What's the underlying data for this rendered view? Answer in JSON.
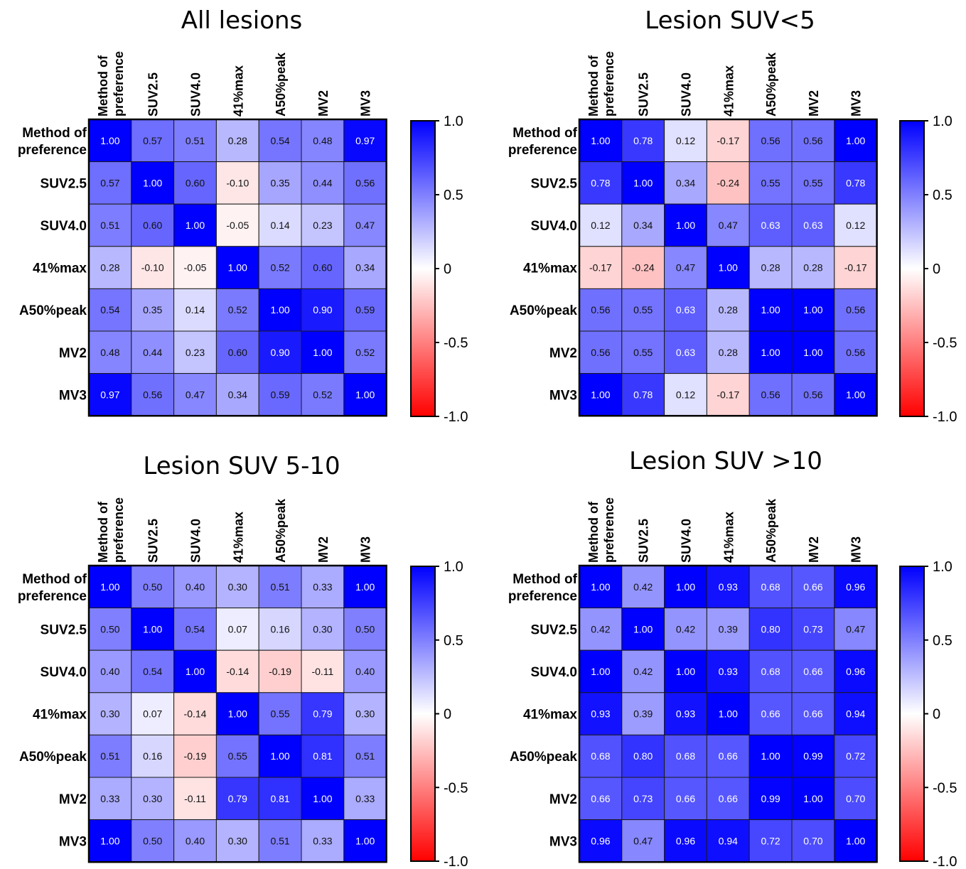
{
  "chart_data": [
    {
      "type": "heatmap",
      "title": "All lesions",
      "rows": [
        "Method of preference",
        "SUV2.5",
        "SUV4.0",
        "41%max",
        "A50%peak",
        "MV2",
        "MV3"
      ],
      "cols": [
        "Method of preference",
        "SUV2.5",
        "SUV4.0",
        "41%max",
        "A50%peak",
        "MV2",
        "MV3"
      ],
      "values": [
        [
          1.0,
          0.57,
          0.51,
          0.28,
          0.54,
          0.48,
          0.97
        ],
        [
          0.57,
          1.0,
          0.6,
          -0.1,
          0.35,
          0.44,
          0.56
        ],
        [
          0.51,
          0.6,
          1.0,
          -0.05,
          0.14,
          0.23,
          0.47
        ],
        [
          0.28,
          -0.1,
          -0.05,
          1.0,
          0.52,
          0.6,
          0.34
        ],
        [
          0.54,
          0.35,
          0.14,
          0.52,
          1.0,
          0.9,
          0.59
        ],
        [
          0.48,
          0.44,
          0.23,
          0.6,
          0.9,
          1.0,
          0.52
        ],
        [
          0.97,
          0.56,
          0.47,
          0.34,
          0.59,
          0.52,
          1.0
        ]
      ],
      "colorbar": {
        "range": [
          -1.0,
          1.0
        ],
        "ticks": [
          "1.0",
          "0.5",
          "0",
          "-0.5",
          "-1.0"
        ]
      }
    },
    {
      "type": "heatmap",
      "title": "Lesion SUV<5",
      "rows": [
        "Method of preference",
        "SUV2.5",
        "SUV4.0",
        "41%max",
        "A50%peak",
        "MV2",
        "MV3"
      ],
      "cols": [
        "Method of preference",
        "SUV2.5",
        "SUV4.0",
        "41%max",
        "A50%peak",
        "MV2",
        "MV3"
      ],
      "values": [
        [
          1.0,
          0.78,
          0.12,
          -0.17,
          0.56,
          0.56,
          1.0
        ],
        [
          0.78,
          1.0,
          0.34,
          -0.24,
          0.55,
          0.55,
          0.78
        ],
        [
          0.12,
          0.34,
          1.0,
          0.47,
          0.63,
          0.63,
          0.12
        ],
        [
          -0.17,
          -0.24,
          0.47,
          1.0,
          0.28,
          0.28,
          -0.17
        ],
        [
          0.56,
          0.55,
          0.63,
          0.28,
          1.0,
          1.0,
          0.56
        ],
        [
          0.56,
          0.55,
          0.63,
          0.28,
          1.0,
          1.0,
          0.56
        ],
        [
          1.0,
          0.78,
          0.12,
          -0.17,
          0.56,
          0.56,
          1.0
        ]
      ],
      "colorbar": {
        "range": [
          -1.0,
          1.0
        ],
        "ticks": [
          "1.0",
          "0.5",
          "0",
          "-0.5",
          "-1.0"
        ]
      }
    },
    {
      "type": "heatmap",
      "title": "Lesion SUV 5-10",
      "rows": [
        "Method of preference",
        "SUV2.5",
        "SUV4.0",
        "41%max",
        "A50%peak",
        "MV2",
        "MV3"
      ],
      "cols": [
        "Method of preference",
        "SUV2.5",
        "SUV4.0",
        "41%max",
        "A50%peak",
        "MV2",
        "MV3"
      ],
      "values": [
        [
          1.0,
          0.5,
          0.4,
          0.3,
          0.51,
          0.33,
          1.0
        ],
        [
          0.5,
          1.0,
          0.54,
          0.07,
          0.16,
          0.3,
          0.5
        ],
        [
          0.4,
          0.54,
          1.0,
          -0.14,
          -0.19,
          -0.11,
          0.4
        ],
        [
          0.3,
          0.07,
          -0.14,
          1.0,
          0.55,
          0.79,
          0.3
        ],
        [
          0.51,
          0.16,
          -0.19,
          0.55,
          1.0,
          0.81,
          0.51
        ],
        [
          0.33,
          0.3,
          -0.11,
          0.79,
          0.81,
          1.0,
          0.33
        ],
        [
          1.0,
          0.5,
          0.4,
          0.3,
          0.51,
          0.33,
          1.0
        ]
      ],
      "colorbar": {
        "range": [
          -1.0,
          1.0
        ],
        "ticks": [
          "1.0",
          "0.5",
          "0",
          "-0.5",
          "-1.0"
        ]
      }
    },
    {
      "type": "heatmap",
      "title": "Lesion SUV >10",
      "rows": [
        "Method of preference",
        "SUV2.5",
        "SUV4.0",
        "41%max",
        "A50%peak",
        "MV2",
        "MV3"
      ],
      "cols": [
        "Method of preference",
        "SUV2.5",
        "SUV4.0",
        "41%max",
        "A50%peak",
        "MV2",
        "MV3"
      ],
      "values": [
        [
          1.0,
          0.42,
          1.0,
          0.93,
          0.68,
          0.66,
          0.96
        ],
        [
          0.42,
          1.0,
          0.42,
          0.39,
          0.8,
          0.73,
          0.47
        ],
        [
          1.0,
          0.42,
          1.0,
          0.93,
          0.68,
          0.66,
          0.96
        ],
        [
          0.93,
          0.39,
          0.93,
          1.0,
          0.66,
          0.66,
          0.94
        ],
        [
          0.68,
          0.8,
          0.68,
          0.66,
          1.0,
          0.99,
          0.72
        ],
        [
          0.66,
          0.73,
          0.66,
          0.66,
          0.99,
          1.0,
          0.7
        ],
        [
          0.96,
          0.47,
          0.96,
          0.94,
          0.72,
          0.7,
          1.0
        ]
      ],
      "colorbar": {
        "range": [
          -1.0,
          1.0
        ],
        "ticks": [
          "1.0",
          "0.5",
          "0",
          "-0.5",
          "-1.0"
        ]
      }
    }
  ],
  "colors": {
    "positive": "#0000FF",
    "zero": "#FFFFFF",
    "negative": "#FF0000",
    "grid": "#1a1a1a"
  }
}
